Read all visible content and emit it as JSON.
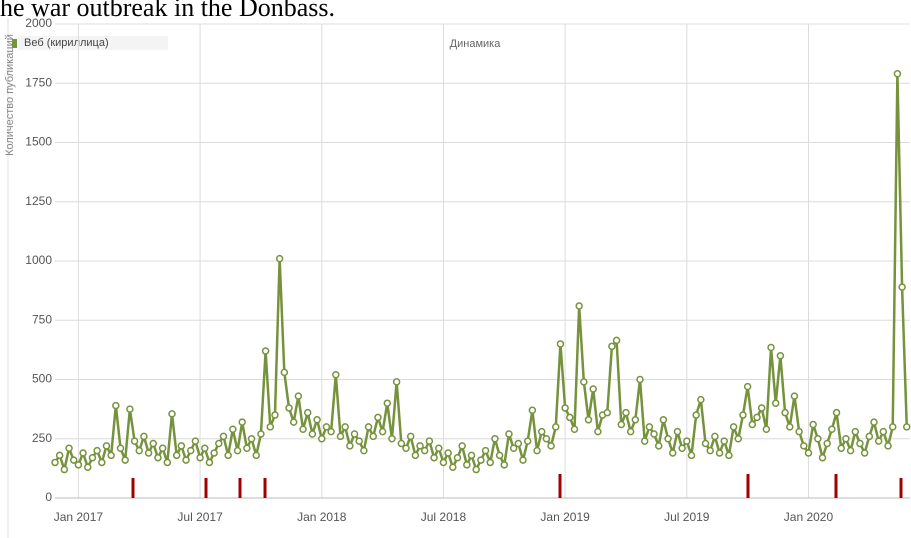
{
  "chart_data": {
    "type": "line",
    "title": "he war outbreak in the Donbass.",
    "subtitle": "Динамика",
    "y_label": "Количество публикаций",
    "ylim": [
      0,
      2000
    ],
    "yticks": [
      0,
      250,
      500,
      750,
      1000,
      1250,
      1500,
      1750,
      2000
    ],
    "grid": true,
    "legend": "top-left",
    "categories": [
      null,
      null,
      null,
      null,
      null,
      "Jan 2017",
      null,
      null,
      null,
      null,
      null,
      null,
      null,
      null,
      null,
      null,
      null,
      null,
      null,
      null,
      null,
      null,
      null,
      null,
      null,
      null,
      null,
      null,
      null,
      null,
      null,
      "Jul 2017",
      null,
      null,
      null,
      null,
      null,
      null,
      null,
      null,
      null,
      null,
      null,
      null,
      null,
      null,
      null,
      null,
      null,
      null,
      null,
      null,
      null,
      null,
      null,
      null,
      null,
      "Jan 2018",
      null,
      null,
      null,
      null,
      null,
      null,
      null,
      null,
      null,
      null,
      null,
      null,
      null,
      null,
      null,
      null,
      null,
      null,
      null,
      null,
      null,
      null,
      null,
      null,
      null,
      "Jul 2018",
      null,
      null,
      null,
      null,
      null,
      null,
      null,
      null,
      null,
      null,
      null,
      null,
      null,
      null,
      null,
      null,
      null,
      null,
      null,
      null,
      null,
      null,
      null,
      null,
      null,
      "Jan 2019",
      null,
      null,
      null,
      null,
      null,
      null,
      null,
      null,
      null,
      null,
      null,
      null,
      null,
      null,
      null,
      null,
      null,
      null,
      null,
      null,
      null,
      null,
      null,
      null,
      null,
      "Jul 2019",
      null,
      null,
      null,
      null,
      null,
      null,
      null,
      null,
      null,
      null,
      null,
      null,
      null,
      null,
      null,
      null,
      null,
      null,
      null,
      null,
      null,
      null,
      null,
      null,
      null,
      "Jan 2020",
      null,
      null,
      null,
      null,
      null,
      null,
      null,
      null,
      null,
      null,
      null,
      null,
      null,
      null,
      null,
      null,
      null,
      null,
      null,
      null,
      null
    ],
    "series": [
      {
        "name": "Веб (кириллица)",
        "color": "#76923c",
        "values": [
          150,
          180,
          120,
          210,
          160,
          140,
          190,
          130,
          170,
          200,
          150,
          220,
          180,
          390,
          210,
          160,
          375,
          240,
          200,
          260,
          190,
          230,
          170,
          210,
          150,
          355,
          180,
          220,
          160,
          200,
          240,
          170,
          210,
          150,
          190,
          230,
          260,
          180,
          290,
          200,
          320,
          210,
          250,
          180,
          270,
          620,
          300,
          350,
          1010,
          530,
          380,
          320,
          430,
          290,
          360,
          270,
          330,
          250,
          300,
          280,
          520,
          260,
          300,
          220,
          270,
          240,
          200,
          300,
          260,
          340,
          280,
          400,
          250,
          490,
          230,
          210,
          260,
          180,
          220,
          200,
          240,
          170,
          210,
          150,
          190,
          130,
          170,
          220,
          140,
          180,
          120,
          160,
          200,
          150,
          250,
          180,
          140,
          270,
          210,
          230,
          160,
          240,
          370,
          200,
          280,
          250,
          220,
          300,
          650,
          380,
          340,
          290,
          810,
          490,
          330,
          460,
          280,
          350,
          360,
          640,
          665,
          310,
          360,
          280,
          330,
          500,
          240,
          300,
          270,
          220,
          330,
          250,
          190,
          280,
          210,
          240,
          180,
          350,
          415,
          230,
          200,
          260,
          190,
          240,
          180,
          300,
          250,
          350,
          470,
          310,
          340,
          380,
          290,
          635,
          400,
          600,
          360,
          300,
          430,
          280,
          220,
          190,
          310,
          250,
          170,
          230,
          290,
          360,
          210,
          250,
          200,
          280,
          230,
          190,
          260,
          320,
          240,
          280,
          220,
          300,
          1790,
          890,
          300
        ]
      }
    ]
  }
}
